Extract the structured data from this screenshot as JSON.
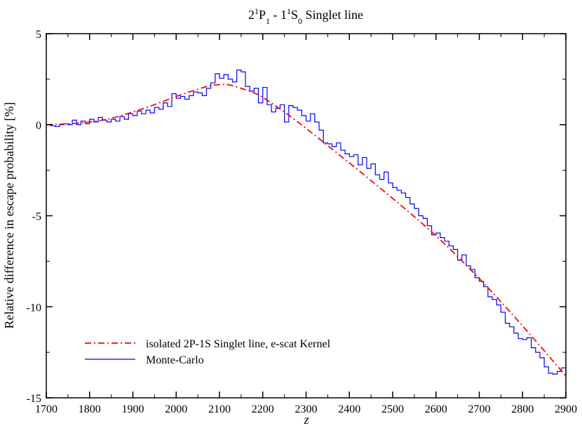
{
  "chart_data": {
    "type": "line",
    "title": {
      "parts": [
        {
          "text": "2",
          "kind": "base"
        },
        {
          "text": "1",
          "kind": "sup"
        },
        {
          "text": "P",
          "kind": "base"
        },
        {
          "text": "1",
          "kind": "sub"
        },
        {
          "text": " - 1",
          "kind": "base"
        },
        {
          "text": "1",
          "kind": "sup"
        },
        {
          "text": "S",
          "kind": "base"
        },
        {
          "text": "0",
          "kind": "sub"
        },
        {
          "text": " Singlet line",
          "kind": "base"
        }
      ]
    },
    "xlabel": "z",
    "ylabel": "Relative difference in escape probability [%]",
    "xlim": [
      1700,
      2900
    ],
    "ylim": [
      -15,
      5
    ],
    "x_ticks": [
      1700,
      1800,
      1900,
      2000,
      2100,
      2200,
      2300,
      2400,
      2500,
      2600,
      2700,
      2800,
      2900
    ],
    "y_ticks": [
      5,
      0,
      -5,
      -10,
      -15
    ],
    "legend_position": "bottom-left",
    "grid": false,
    "series": [
      {
        "name": "isolated 2P-1S Singlet line, e-scat Kernel",
        "style": "dash-dot",
        "color": "#ff0000",
        "x": [
          1700,
          1750,
          1800,
          1850,
          1900,
          1950,
          2000,
          2050,
          2080,
          2100,
          2120,
          2150,
          2180,
          2200,
          2250,
          2300,
          2400,
          2500,
          2600,
          2700,
          2800,
          2900
        ],
        "y": [
          0.0,
          0.05,
          0.15,
          0.35,
          0.7,
          1.1,
          1.55,
          1.95,
          2.15,
          2.2,
          2.2,
          2.0,
          1.75,
          1.5,
          0.7,
          -0.2,
          -2.1,
          -4.05,
          -6.1,
          -8.45,
          -11.05,
          -13.8
        ]
      },
      {
        "name": "Monte-Carlo",
        "style": "step",
        "color": "#0000ff",
        "x": [
          1700,
          1710,
          1720,
          1730,
          1740,
          1750,
          1760,
          1770,
          1780,
          1790,
          1800,
          1810,
          1820,
          1830,
          1840,
          1850,
          1860,
          1870,
          1880,
          1890,
          1900,
          1910,
          1920,
          1930,
          1940,
          1950,
          1960,
          1970,
          1980,
          1990,
          2000,
          2010,
          2020,
          2030,
          2040,
          2050,
          2060,
          2070,
          2080,
          2090,
          2100,
          2110,
          2120,
          2130,
          2140,
          2150,
          2160,
          2170,
          2180,
          2190,
          2200,
          2210,
          2220,
          2230,
          2240,
          2250,
          2260,
          2270,
          2280,
          2290,
          2300,
          2310,
          2320,
          2330,
          2340,
          2350,
          2360,
          2370,
          2380,
          2390,
          2400,
          2410,
          2420,
          2430,
          2440,
          2450,
          2460,
          2470,
          2480,
          2490,
          2500,
          2510,
          2520,
          2530,
          2540,
          2550,
          2560,
          2570,
          2580,
          2590,
          2600,
          2610,
          2620,
          2630,
          2640,
          2650,
          2660,
          2670,
          2680,
          2690,
          2700,
          2710,
          2720,
          2730,
          2740,
          2750,
          2760,
          2770,
          2780,
          2790,
          2800,
          2810,
          2820,
          2830,
          2840,
          2850,
          2860,
          2870,
          2880,
          2890,
          2900
        ],
        "y": [
          0.0,
          -0.05,
          -0.1,
          0.0,
          0.05,
          0.0,
          0.25,
          0.0,
          0.2,
          0.05,
          0.3,
          0.15,
          0.4,
          0.25,
          0.15,
          0.3,
          0.2,
          0.45,
          0.3,
          0.6,
          0.5,
          0.75,
          0.6,
          0.8,
          0.65,
          0.95,
          0.85,
          1.2,
          1.0,
          1.7,
          1.45,
          1.55,
          1.4,
          1.6,
          1.8,
          1.75,
          1.6,
          2.0,
          2.3,
          2.8,
          2.55,
          2.75,
          2.5,
          2.35,
          3.0,
          2.9,
          2.1,
          1.85,
          2.0,
          1.2,
          2.05,
          1.1,
          0.7,
          0.9,
          1.1,
          0.15,
          1.05,
          0.95,
          0.8,
          0.5,
          0.2,
          0.6,
          0.15,
          -0.3,
          -1.0,
          -1.05,
          -1.2,
          -1.0,
          -1.4,
          -1.6,
          -1.75,
          -1.65,
          -2.2,
          -1.8,
          -2.4,
          -2.15,
          -2.75,
          -3.0,
          -2.6,
          -3.2,
          -3.45,
          -3.6,
          -3.75,
          -4.0,
          -4.35,
          -4.6,
          -5.0,
          -5.15,
          -5.55,
          -6.05,
          -5.95,
          -6.2,
          -6.4,
          -6.65,
          -6.85,
          -7.45,
          -7.15,
          -7.75,
          -7.95,
          -8.4,
          -8.6,
          -8.9,
          -9.45,
          -9.6,
          -9.9,
          -10.3,
          -10.9,
          -11.1,
          -11.45,
          -11.75,
          -11.8,
          -11.7,
          -12.25,
          -12.5,
          -12.8,
          -13.3,
          -13.65,
          -13.7,
          -13.55,
          -13.35,
          -13.9
        ]
      }
    ]
  }
}
